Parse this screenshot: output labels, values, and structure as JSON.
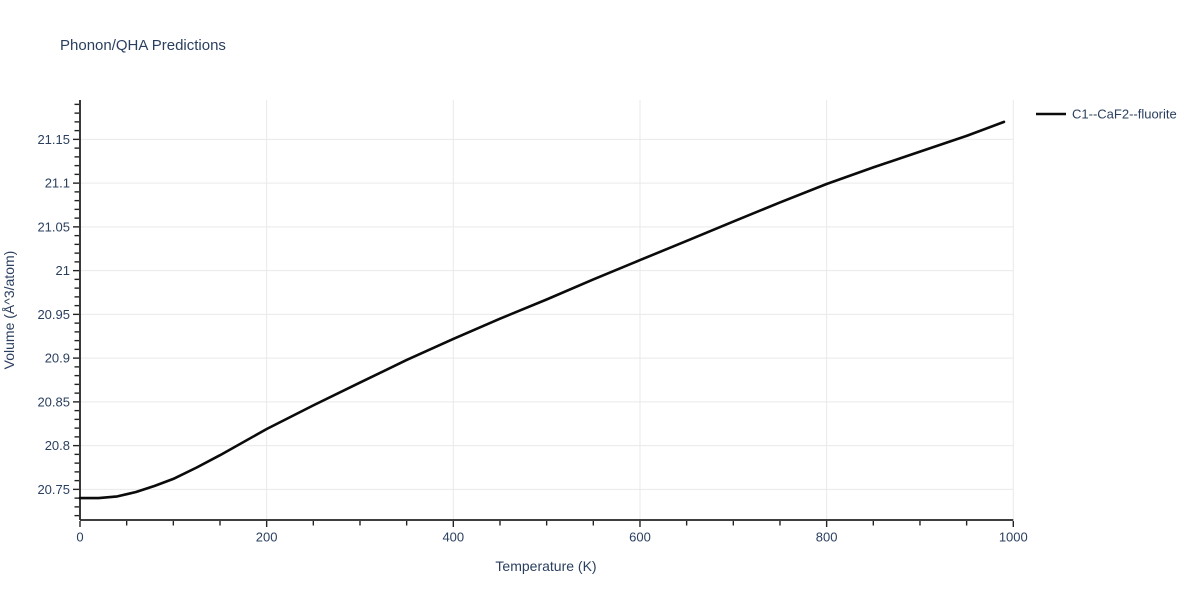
{
  "colors": {
    "text": "#2a3f5f",
    "axis_line": "#232323",
    "tick": "#232323",
    "grid": "#e9e9e9",
    "series_line": "#0b0b0b",
    "background": "#ffffff"
  },
  "chart_data": {
    "type": "line",
    "title": "Phonon/QHA Predictions",
    "xlabel": "Temperature (K)",
    "ylabel": "Volume (Å^3/atom)",
    "xlim": [
      0,
      1000
    ],
    "ylim": [
      20.715,
      21.195
    ],
    "grid": true,
    "legend_position": "outside-top-right",
    "x_major_ticks": [
      0,
      200,
      400,
      600,
      800,
      1000
    ],
    "x_tick_labels": [
      "0",
      "200",
      "400",
      "600",
      "800",
      "1000"
    ],
    "x_minor_step": 50,
    "y_major_ticks": [
      20.75,
      20.8,
      20.85,
      20.9,
      20.95,
      21,
      21.05,
      21.1,
      21.15
    ],
    "y_tick_labels": [
      "20.75",
      "20.8",
      "20.85",
      "20.9",
      "20.95",
      "21",
      "21.05",
      "21.1",
      "21.15"
    ],
    "y_minor_step": 0.01,
    "series": [
      {
        "name": "C1--CaF2--fluorite",
        "color": "#0b0b0b",
        "x": [
          0,
          20,
          40,
          60,
          80,
          100,
          125,
          150,
          200,
          250,
          300,
          350,
          400,
          450,
          500,
          550,
          600,
          650,
          700,
          750,
          800,
          850,
          900,
          950,
          990
        ],
        "y": [
          20.74,
          20.74,
          20.742,
          20.747,
          20.754,
          20.762,
          20.775,
          20.789,
          20.819,
          20.846,
          20.872,
          20.898,
          20.922,
          20.945,
          20.967,
          20.99,
          21.012,
          21.034,
          21.056,
          21.078,
          21.099,
          21.118,
          21.136,
          21.154,
          21.17
        ]
      }
    ]
  }
}
